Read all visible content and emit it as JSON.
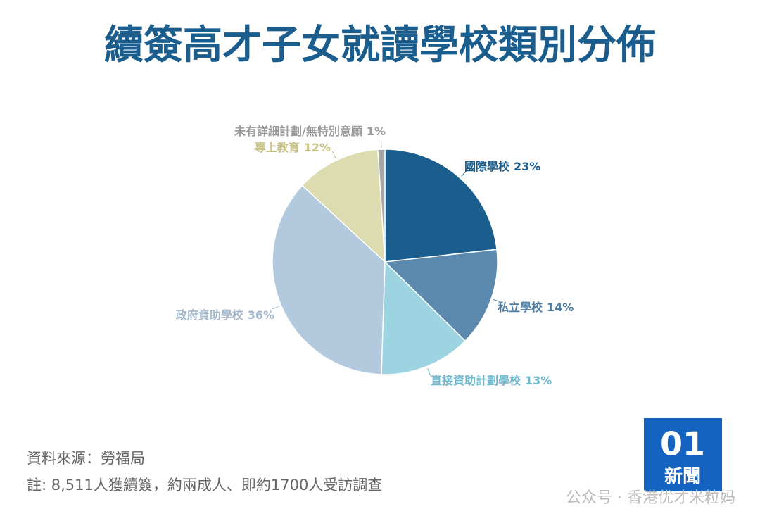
{
  "chart_data": {
    "type": "pie",
    "title": "續簽高才子女就讀學校類別分佈",
    "categories": [
      "國際學校",
      "私立學校",
      "直接資助計劃學校",
      "政府資助學校",
      "專上教育",
      "未有詳細計劃/無特別意願"
    ],
    "values": [
      23,
      14,
      13,
      36,
      12,
      1
    ],
    "value_labels": [
      "23%",
      "14%",
      "13%",
      "36%",
      "12%",
      "1%"
    ],
    "colors": [
      "#1b5d8c",
      "#5c89ae",
      "#9dd4e1",
      "#b3c9de",
      "#dcdcb0",
      "#a8a6a6"
    ],
    "label_colors": [
      "#1b5d8c",
      "#4f7ea5",
      "#6fb9cf",
      "#a3b7cb",
      "#c8c287",
      "#9a9a9a"
    ]
  },
  "footer": {
    "source": "資料來源：勞福局",
    "note": "註: 8,511人獲續簽，約兩成人、即約1700人受訪調查"
  },
  "logo": {
    "number": "01",
    "text": "新聞"
  },
  "watermark": "公众号 · 香港优才米粒妈"
}
